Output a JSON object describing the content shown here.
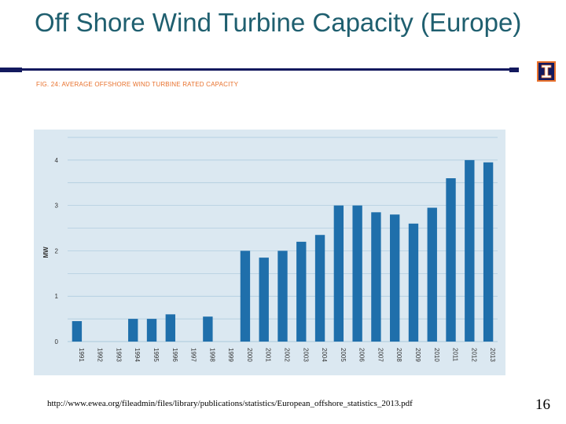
{
  "slide": {
    "title": "Off Shore Wind Turbine Capacity (Europe)",
    "figure_caption": "FIG. 24: AVERAGE OFFSHORE WIND TURBINE RATED CAPACITY",
    "source": "http://www.ewea.org/fileadmin/files/library/publications/statistics/European_offshore_statistics_2013.pdf",
    "page_number": "16"
  },
  "colors": {
    "title": "#1f5f6f",
    "rule": "#13195e",
    "caption": "#e8712c",
    "bar": "#1f6fab",
    "panel": "#dbe8f1",
    "grid": "#a9c8dc"
  },
  "logo": {
    "icon": "university-block-i-icon"
  },
  "chart_data": {
    "type": "bar",
    "title": "",
    "xlabel": "",
    "ylabel": "MW",
    "ylim": [
      0,
      4.5
    ],
    "yticks": [
      "0",
      "1",
      "2",
      "3",
      "4"
    ],
    "grid": true,
    "legend": "none",
    "categories": [
      "1991",
      "1992",
      "1993",
      "1994",
      "1995",
      "1996",
      "1997",
      "1998",
      "1999",
      "2000",
      "2001",
      "2002",
      "2003",
      "2004",
      "2005",
      "2006",
      "2007",
      "2008",
      "2009",
      "2010",
      "2011",
      "2012",
      "2013"
    ],
    "values": [
      0.45,
      0,
      0,
      0.5,
      0.5,
      0.6,
      0,
      0.55,
      0,
      2.0,
      1.85,
      2.0,
      2.2,
      2.35,
      3.0,
      3.0,
      2.85,
      2.8,
      2.6,
      2.95,
      3.6,
      4.0,
      3.95
    ]
  }
}
